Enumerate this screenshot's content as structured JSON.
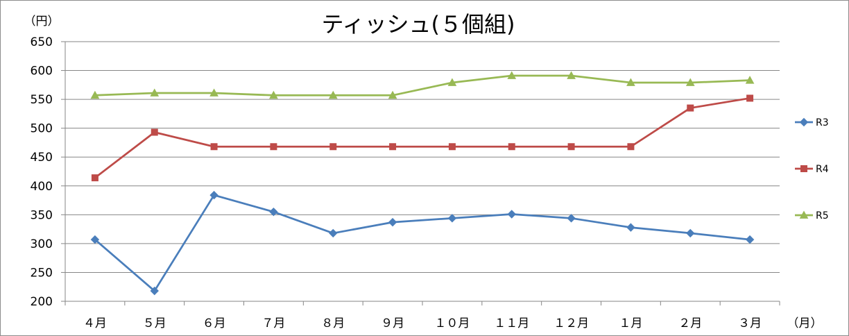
{
  "chart_data": {
    "type": "line",
    "title": "ティッシュ(５個組)",
    "ylabel": "（円）",
    "xlabel": "（月）",
    "categories": [
      "４月",
      "５月",
      "６月",
      "７月",
      "８月",
      "９月",
      "１０月",
      "１１月",
      "１２月",
      "１月",
      "２月",
      "３月"
    ],
    "ylim": [
      200,
      650
    ],
    "yticks": [
      200,
      250,
      300,
      350,
      400,
      450,
      500,
      550,
      600,
      650
    ],
    "grid": true,
    "legend_position": "right",
    "series": [
      {
        "name": "R3",
        "color": "#4a7ebb",
        "marker": "diamond",
        "values": [
          307,
          218,
          384,
          355,
          318,
          337,
          344,
          351,
          344,
          328,
          318,
          307
        ]
      },
      {
        "name": "R4",
        "color": "#be4b48",
        "marker": "square",
        "values": [
          414,
          493,
          468,
          468,
          468,
          468,
          468,
          468,
          468,
          468,
          535,
          552
        ]
      },
      {
        "name": "R5",
        "color": "#98b954",
        "marker": "triangle",
        "values": [
          557,
          561,
          561,
          557,
          557,
          557,
          579,
          591,
          591,
          579,
          579,
          583
        ]
      }
    ]
  }
}
